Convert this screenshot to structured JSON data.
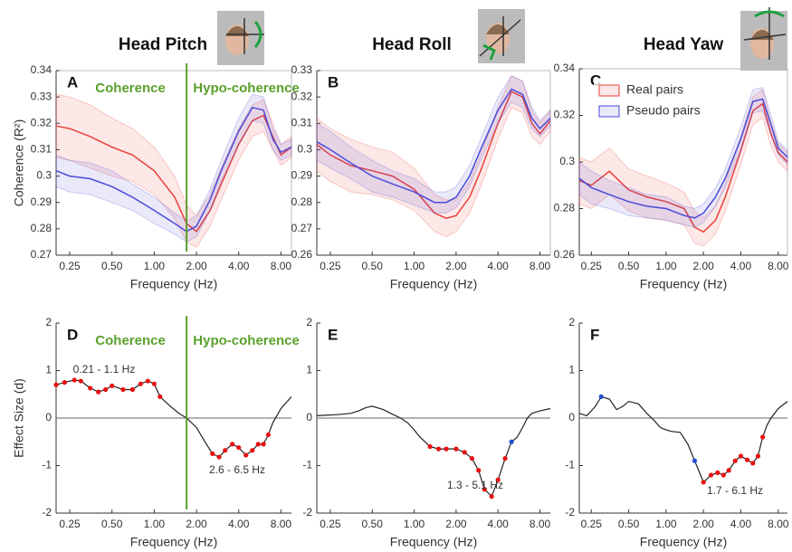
{
  "chart_data": [
    {
      "type": "line",
      "title": "Head Pitch",
      "panel_label": "A",
      "ylabel": "Coherence (R²)",
      "xlabel": "Frequency (Hz)",
      "log_x": true,
      "xlim": [
        0.2,
        9.5
      ],
      "xticks": [
        0.25,
        {
          "value": 0.5,
          "label": "0.50"
        },
        {
          "value": 1,
          "label": "1.00"
        },
        {
          "value": 2,
          "label": "2.00"
        },
        {
          "value": 4,
          "label": "4.00"
        },
        {
          "value": 8,
          "label": "8.00"
        }
      ],
      "ylim": [
        0.27,
        0.34
      ],
      "yticks": [
        0.27,
        0.28,
        0.29,
        0.3,
        0.31,
        0.32,
        0.33,
        0.34
      ],
      "divider": 1.7,
      "divider_color": "#5aa02c",
      "region_labels": [
        "Coherence",
        "Hypo-coherence"
      ],
      "x": [
        0.2,
        0.25,
        0.35,
        0.5,
        0.7,
        1.0,
        1.4,
        1.7,
        2.0,
        2.5,
        3.0,
        4.0,
        5.0,
        6.0,
        7.0,
        8.0,
        9.5
      ],
      "series": [
        {
          "name": "Real pairs",
          "color": "#e8413c",
          "values": [
            0.319,
            0.318,
            0.315,
            0.311,
            0.308,
            0.302,
            0.292,
            0.282,
            0.279,
            0.287,
            0.297,
            0.312,
            0.321,
            0.323,
            0.315,
            0.308,
            0.311
          ],
          "errors": [
            0.012,
            0.012,
            0.012,
            0.011,
            0.01,
            0.009,
            0.008,
            0.007,
            0.006,
            0.006,
            0.006,
            0.006,
            0.006,
            0.006,
            0.005,
            0.004,
            0.004
          ]
        },
        {
          "name": "Pseudo pairs",
          "color": "#4a4ad8",
          "values": [
            0.302,
            0.3,
            0.299,
            0.296,
            0.292,
            0.287,
            0.282,
            0.279,
            0.281,
            0.291,
            0.302,
            0.317,
            0.326,
            0.325,
            0.314,
            0.309,
            0.311
          ],
          "errors": [
            0.006,
            0.006,
            0.006,
            0.006,
            0.005,
            0.005,
            0.004,
            0.004,
            0.004,
            0.004,
            0.004,
            0.005,
            0.005,
            0.005,
            0.004,
            0.003,
            0.003
          ]
        }
      ]
    },
    {
      "type": "line",
      "title": "Head Roll",
      "panel_label": "B",
      "xlabel": "Frequency (Hz)",
      "log_x": true,
      "xlim": [
        0.2,
        9.5
      ],
      "xticks": [
        0.25,
        {
          "value": 0.5,
          "label": "0.50"
        },
        {
          "value": 1,
          "label": "1.00"
        },
        {
          "value": 2,
          "label": "2.00"
        },
        {
          "value": 4,
          "label": "4.00"
        },
        {
          "value": 8,
          "label": "8.00"
        }
      ],
      "ylim": [
        0.26,
        0.33
      ],
      "yticks": [
        0.26,
        0.27,
        0.28,
        0.29,
        0.3,
        0.31,
        0.32,
        0.33
      ],
      "x": [
        0.2,
        0.25,
        0.35,
        0.5,
        0.7,
        1.0,
        1.4,
        1.7,
        2.0,
        2.5,
        3.0,
        4.0,
        5.0,
        6.0,
        7.0,
        8.0,
        9.5
      ],
      "series": [
        {
          "name": "Real pairs",
          "color": "#e8413c",
          "values": [
            0.302,
            0.298,
            0.294,
            0.292,
            0.29,
            0.285,
            0.276,
            0.274,
            0.275,
            0.282,
            0.292,
            0.31,
            0.322,
            0.32,
            0.31,
            0.306,
            0.311
          ],
          "errors": [
            0.01,
            0.01,
            0.01,
            0.009,
            0.009,
            0.008,
            0.007,
            0.007,
            0.006,
            0.006,
            0.006,
            0.006,
            0.006,
            0.006,
            0.005,
            0.004,
            0.004
          ]
        },
        {
          "name": "Pseudo pairs",
          "color": "#4a4ad8",
          "values": [
            0.303,
            0.3,
            0.295,
            0.29,
            0.287,
            0.284,
            0.28,
            0.28,
            0.282,
            0.29,
            0.3,
            0.315,
            0.323,
            0.321,
            0.312,
            0.308,
            0.312
          ],
          "errors": [
            0.007,
            0.007,
            0.006,
            0.006,
            0.005,
            0.005,
            0.004,
            0.004,
            0.004,
            0.004,
            0.004,
            0.005,
            0.005,
            0.005,
            0.004,
            0.003,
            0.003
          ]
        }
      ]
    },
    {
      "type": "line",
      "title": "Head Yaw",
      "panel_label": "C",
      "xlabel": "Frequency (Hz)",
      "log_x": true,
      "legend": "upper left",
      "xlim": [
        0.2,
        9.5
      ],
      "xticks": [
        0.25,
        {
          "value": 0.5,
          "label": "0.50"
        },
        {
          "value": 1,
          "label": "1.00"
        },
        {
          "value": 2,
          "label": "2.00"
        },
        {
          "value": 4,
          "label": "4.00"
        },
        {
          "value": 8,
          "label": "8.00"
        }
      ],
      "ylim": [
        0.26,
        0.34
      ],
      "yticks": [
        0.26,
        0.28,
        0.3,
        0.32,
        0.34
      ],
      "x": [
        0.2,
        0.25,
        0.35,
        0.5,
        0.7,
        1.0,
        1.4,
        1.7,
        2.0,
        2.5,
        3.0,
        4.0,
        5.0,
        6.0,
        7.0,
        8.0,
        9.5
      ],
      "series": [
        {
          "name": "Real pairs",
          "color": "#e8413c",
          "values": [
            0.292,
            0.29,
            0.296,
            0.288,
            0.285,
            0.283,
            0.28,
            0.272,
            0.27,
            0.275,
            0.285,
            0.305,
            0.322,
            0.325,
            0.312,
            0.304,
            0.3
          ],
          "errors": [
            0.01,
            0.01,
            0.01,
            0.009,
            0.009,
            0.008,
            0.007,
            0.007,
            0.006,
            0.006,
            0.006,
            0.006,
            0.006,
            0.006,
            0.005,
            0.004,
            0.004
          ]
        },
        {
          "name": "Pseudo pairs",
          "color": "#4a4ad8",
          "values": [
            0.293,
            0.289,
            0.286,
            0.283,
            0.281,
            0.28,
            0.277,
            0.276,
            0.278,
            0.285,
            0.293,
            0.31,
            0.326,
            0.327,
            0.316,
            0.306,
            0.302
          ],
          "errors": [
            0.007,
            0.007,
            0.006,
            0.006,
            0.005,
            0.005,
            0.004,
            0.004,
            0.004,
            0.004,
            0.004,
            0.005,
            0.005,
            0.005,
            0.004,
            0.003,
            0.003
          ]
        }
      ]
    },
    {
      "type": "line",
      "panel_label": "D",
      "ylabel": "Effect Size (d)",
      "xlabel": "Frequency (Hz)",
      "log_x": true,
      "zero_line": true,
      "xlim": [
        0.2,
        9.5
      ],
      "xticks": [
        0.25,
        {
          "value": 0.5,
          "label": "0.50"
        },
        {
          "value": 1,
          "label": "1.00"
        },
        {
          "value": 2,
          "label": "2.00"
        },
        {
          "value": 4,
          "label": "4.00"
        },
        {
          "value": 8,
          "label": "8.00"
        }
      ],
      "ylim": [
        -2,
        2
      ],
      "yticks": [
        -2,
        -1,
        0,
        1,
        2
      ],
      "divider": 1.7,
      "divider_color": "#5aa02c",
      "region_labels": [
        "Coherence",
        "Hypo-coherence"
      ],
      "annotations": [
        "0.21 - 1.1 Hz",
        "2.6 - 6.5 Hz"
      ],
      "x": [
        0.2,
        0.23,
        0.27,
        0.3,
        0.35,
        0.4,
        0.45,
        0.5,
        0.6,
        0.7,
        0.8,
        0.9,
        1.0,
        1.1,
        1.3,
        1.5,
        1.7,
        2.0,
        2.3,
        2.6,
        2.9,
        3.2,
        3.6,
        4.0,
        4.5,
        5.0,
        5.5,
        6.0,
        6.5,
        7.0,
        8.0,
        9.5
      ],
      "series": [
        {
          "color": "#222222",
          "values": [
            0.7,
            0.75,
            0.8,
            0.78,
            0.63,
            0.55,
            0.6,
            0.68,
            0.6,
            0.6,
            0.72,
            0.78,
            0.72,
            0.45,
            0.25,
            0.1,
            0.0,
            -0.2,
            -0.5,
            -0.75,
            -0.82,
            -0.68,
            -0.55,
            -0.62,
            -0.78,
            -0.68,
            -0.55,
            -0.55,
            -0.35,
            -0.1,
            0.2,
            0.45
          ],
          "point_colors": [
            "#e81010",
            "#e81010",
            "#e81010",
            "#e81010",
            "#e81010",
            "#e81010",
            "#e81010",
            "#e81010",
            "#e81010",
            "#e81010",
            "#e81010",
            "#e81010",
            "#e81010",
            "#e81010",
            null,
            null,
            null,
            null,
            null,
            "#e81010",
            "#e81010",
            "#e81010",
            "#e81010",
            "#e81010",
            "#e81010",
            "#e81010",
            "#e81010",
            "#e81010",
            "#e81010",
            null,
            null,
            null
          ]
        }
      ]
    },
    {
      "type": "line",
      "panel_label": "E",
      "xlabel": "Frequency (Hz)",
      "log_x": true,
      "zero_line": true,
      "xlim": [
        0.2,
        9.5
      ],
      "xticks": [
        0.25,
        {
          "value": 0.5,
          "label": "0.50"
        },
        {
          "value": 1,
          "label": "1.00"
        },
        {
          "value": 2,
          "label": "2.00"
        },
        {
          "value": 4,
          "label": "4.00"
        },
        {
          "value": 8,
          "label": "8.00"
        }
      ],
      "ylim": [
        -2,
        2
      ],
      "yticks": [
        -2,
        -1,
        0,
        1,
        2
      ],
      "annotations": [
        "1.3 - 5.1 Hz"
      ],
      "x": [
        0.2,
        0.23,
        0.27,
        0.3,
        0.35,
        0.4,
        0.45,
        0.5,
        0.6,
        0.7,
        0.8,
        0.9,
        1.0,
        1.1,
        1.3,
        1.5,
        1.7,
        2.0,
        2.3,
        2.6,
        2.9,
        3.2,
        3.6,
        4.0,
        4.5,
        5.0,
        5.5,
        6.0,
        6.5,
        7.0,
        8.0,
        9.5
      ],
      "series": [
        {
          "color": "#222222",
          "values": [
            0.05,
            0.06,
            0.07,
            0.08,
            0.1,
            0.15,
            0.22,
            0.25,
            0.18,
            0.08,
            0.0,
            -0.1,
            -0.25,
            -0.4,
            -0.6,
            -0.65,
            -0.65,
            -0.65,
            -0.72,
            -0.85,
            -1.1,
            -1.5,
            -1.65,
            -1.3,
            -0.85,
            -0.5,
            -0.4,
            -0.2,
            0.0,
            0.1,
            0.15,
            0.2
          ],
          "point_colors": [
            null,
            null,
            null,
            null,
            null,
            null,
            null,
            null,
            null,
            null,
            null,
            null,
            null,
            null,
            "#e81010",
            "#e81010",
            "#e81010",
            "#e81010",
            "#e81010",
            "#e81010",
            "#e81010",
            "#e81010",
            "#e81010",
            "#e81010",
            "#e81010",
            "#2050d0",
            null,
            null,
            null,
            null,
            null,
            null
          ]
        }
      ]
    },
    {
      "type": "line",
      "panel_label": "F",
      "xlabel": "Frequency (Hz)",
      "log_x": true,
      "zero_line": true,
      "xlim": [
        0.2,
        9.5
      ],
      "xticks": [
        0.25,
        {
          "value": 0.5,
          "label": "0.50"
        },
        {
          "value": 1,
          "label": "1.00"
        },
        {
          "value": 2,
          "label": "2.00"
        },
        {
          "value": 4,
          "label": "4.00"
        },
        {
          "value": 8,
          "label": "8.00"
        }
      ],
      "ylim": [
        -2,
        2
      ],
      "yticks": [
        -2,
        -1,
        0,
        1,
        2
      ],
      "annotations": [
        "1.7 - 6.1 Hz"
      ],
      "x": [
        0.2,
        0.23,
        0.27,
        0.3,
        0.35,
        0.4,
        0.45,
        0.5,
        0.6,
        0.7,
        0.8,
        0.9,
        1.0,
        1.1,
        1.3,
        1.5,
        1.7,
        2.0,
        2.3,
        2.6,
        2.9,
        3.2,
        3.6,
        4.0,
        4.5,
        5.0,
        5.5,
        6.0,
        6.5,
        7.0,
        8.0,
        9.5
      ],
      "series": [
        {
          "color": "#222222",
          "values": [
            0.1,
            0.05,
            0.25,
            0.45,
            0.4,
            0.18,
            0.25,
            0.35,
            0.3,
            0.1,
            -0.05,
            -0.2,
            -0.25,
            -0.28,
            -0.3,
            -0.55,
            -0.9,
            -1.35,
            -1.2,
            -1.15,
            -1.2,
            -1.1,
            -0.9,
            -0.8,
            -0.88,
            -0.95,
            -0.8,
            -0.4,
            -0.15,
            0.0,
            0.2,
            0.35
          ],
          "point_colors": [
            null,
            null,
            null,
            "#2050d0",
            null,
            null,
            null,
            null,
            null,
            null,
            null,
            null,
            null,
            null,
            null,
            null,
            "#2050d0",
            "#e81010",
            "#e81010",
            "#e81010",
            "#e81010",
            "#e81010",
            "#e81010",
            "#e81010",
            "#e81010",
            "#e81010",
            "#e81010",
            "#e81010",
            null,
            null,
            null,
            null
          ]
        }
      ]
    }
  ]
}
